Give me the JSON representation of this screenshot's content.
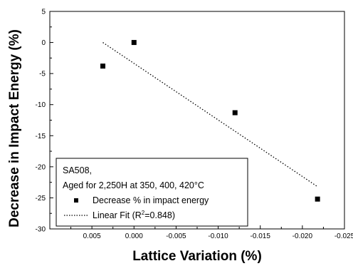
{
  "chart_data": {
    "type": "scatter",
    "xlabel": "Lattice Variation (%)",
    "ylabel": "Decrease in Impact Energy (%)",
    "xlim": [
      0.01,
      -0.025
    ],
    "ylim": [
      -30,
      5
    ],
    "x_reversed": true,
    "xticks": [
      0.005,
      0.0,
      -0.005,
      -0.01,
      -0.015,
      -0.02,
      -0.025
    ],
    "xtick_labels": [
      "0.005",
      "0.000",
      "-0.005",
      "-0.010",
      "-0.015",
      "-0.020",
      "-0.025"
    ],
    "yticks": [
      5,
      0,
      -5,
      -10,
      -15,
      -20,
      -25,
      -30
    ],
    "ytick_labels": [
      "5",
      "0",
      "-5",
      "-10",
      "-15",
      "-20",
      "-25",
      "-30"
    ],
    "grid": false,
    "series": [
      {
        "name": "Decrease % in impact energy",
        "marker": "square",
        "color": "#000000",
        "points": [
          {
            "x": 0.0037,
            "y": -3.8
          },
          {
            "x": 0.0,
            "y": 0.0
          },
          {
            "x": -0.012,
            "y": -11.3
          },
          {
            "x": -0.0218,
            "y": -25.2
          }
        ]
      },
      {
        "name": "Linear Fit",
        "style": "dotted",
        "color": "#000000",
        "points": [
          {
            "x": 0.0037,
            "y": 0.0
          },
          {
            "x": -0.0218,
            "y": -23.2
          }
        ]
      }
    ],
    "legend": {
      "placement": "bottom-left",
      "title_lines": [
        "SA508,",
        "Aged for 2,250H at 350, 400, 420°C"
      ],
      "scatter_label": "Decrease % in impact energy",
      "fit_label_prefix": "Linear Fit (R",
      "fit_label_sup": "2",
      "fit_label_suffix": "=0.848)"
    }
  }
}
